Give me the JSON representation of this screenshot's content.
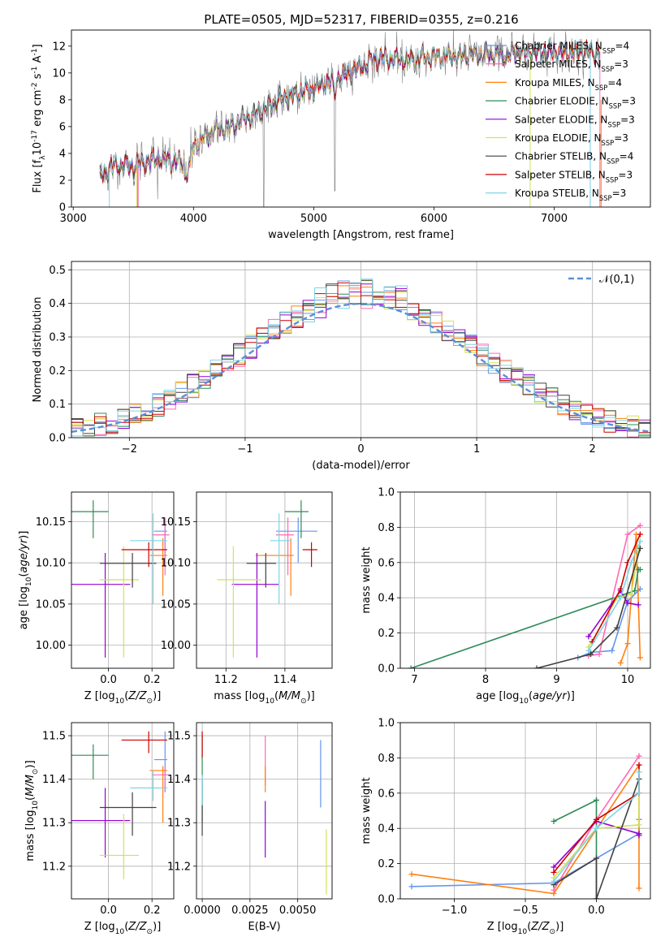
{
  "figure": {
    "title": "PLATE=0505, MJD=52317, FIBERID=0355, z=0.216"
  },
  "colors": {
    "Chabrier MILES": "#6495ed",
    "Salpeter MILES": "#ff69b4",
    "Kroupa MILES": "#ff7f0e",
    "Chabrier ELODIE": "#2e8b57",
    "Salpeter ELODIE": "#9400d3",
    "Kroupa ELODIE": "#d4e157",
    "Chabrier STELIB": "#404040",
    "Salpeter STELIB": "#cc0000",
    "Kroupa STELIB": "#7fd4e6",
    "data": "#808080",
    "normal": "#5b8fd6"
  },
  "chart_data": [
    {
      "id": "spectrum",
      "type": "line",
      "xlabel": "wavelength [Angstrom, rest frame]",
      "ylabel": "Flux [f$_\\lambda$10$^{-17}$ erg cm$^{-2}$ s$^{-1}$ A$^{-1}$]",
      "xlim": [
        2985,
        7800
      ],
      "ylim": [
        0,
        13.2
      ],
      "xticks": [
        3000,
        4000,
        5000,
        6000,
        7000
      ],
      "yticks": [
        0,
        2,
        4,
        6,
        8,
        10,
        12
      ],
      "legend_loc": "right",
      "grid": false,
      "continuum": [
        [
          3220,
          2.2
        ],
        [
          3300,
          2.9
        ],
        [
          3400,
          3.2
        ],
        [
          3500,
          3.0
        ],
        [
          3600,
          3.4
        ],
        [
          3700,
          3.6
        ],
        [
          3800,
          3.5
        ],
        [
          3900,
          3.2
        ],
        [
          4000,
          4.5
        ],
        [
          4100,
          5.3
        ],
        [
          4200,
          5.8
        ],
        [
          4300,
          5.9
        ],
        [
          4400,
          6.5
        ],
        [
          4500,
          6.9
        ],
        [
          4600,
          7.3
        ],
        [
          4700,
          8.0
        ],
        [
          4800,
          8.2
        ],
        [
          4900,
          8.6
        ],
        [
          5000,
          8.8
        ],
        [
          5100,
          9.3
        ],
        [
          5200,
          9.6
        ],
        [
          5300,
          10.0
        ],
        [
          5400,
          10.5
        ],
        [
          5500,
          11.0
        ],
        [
          5600,
          11.1
        ],
        [
          5700,
          11.0
        ],
        [
          5800,
          10.9
        ],
        [
          5900,
          11.1
        ],
        [
          6000,
          11.2
        ],
        [
          6100,
          11.3
        ],
        [
          6200,
          11.2
        ],
        [
          6300,
          11.4
        ],
        [
          6400,
          11.3
        ],
        [
          6500,
          11.4
        ],
        [
          6600,
          11.3
        ],
        [
          6700,
          11.5
        ],
        [
          6800,
          11.6
        ],
        [
          6900,
          11.5
        ],
        [
          7000,
          11.6
        ],
        [
          7100,
          11.5
        ],
        [
          7200,
          11.6
        ],
        [
          7300,
          11.5
        ],
        [
          7380,
          11.6
        ]
      ],
      "series": [
        {
          "name": "Chabrier MILES, N$_{SSP}$=4",
          "key": "Chabrier MILES"
        },
        {
          "name": "Salpeter MILES, N$_{SSP}$=3",
          "key": "Salpeter MILES"
        },
        {
          "name": "Kroupa MILES, N$_{SSP}$=4",
          "key": "Kroupa MILES"
        },
        {
          "name": "Chabrier ELODIE, N$_{SSP}$=3",
          "key": "Chabrier ELODIE"
        },
        {
          "name": "Salpeter ELODIE, N$_{SSP}$=3",
          "key": "Salpeter ELODIE"
        },
        {
          "name": "Kroupa ELODIE, N$_{SSP}$=3",
          "key": "Kroupa ELODIE"
        },
        {
          "name": "Chabrier STELIB, N$_{SSP}$=4",
          "key": "Chabrier STELIB"
        },
        {
          "name": "Salpeter STELIB, N$_{SSP}$=3",
          "key": "Salpeter STELIB"
        },
        {
          "name": "Kroupa STELIB, N$_{SSP}$=3",
          "key": "Kroupa STELIB"
        }
      ]
    },
    {
      "id": "residuals",
      "type": "line",
      "xlabel": "(data-model)/error",
      "ylabel": "Normed distribution",
      "xlim": [
        -2.5,
        2.5
      ],
      "ylim": [
        0,
        0.525
      ],
      "xticks": [
        -2,
        -1,
        0,
        1,
        2
      ],
      "yticks": [
        0.0,
        0.1,
        0.2,
        0.3,
        0.4,
        0.5
      ],
      "grid": true,
      "legend_loc": "top-right",
      "legend": "$\\mathcal{N}(0,1)$",
      "bins": {
        "start": -2.5,
        "width": 0.1,
        "count": 50
      },
      "normal": {
        "mean": 0,
        "sigma": 1
      }
    },
    {
      "id": "z-age",
      "type": "scatter",
      "xlabel": "Z [log$_{10}$($Z/Z_\\odot$)]",
      "ylabel": "age  [log$_{10}$($age/yr$)]",
      "xlim": [
        -0.17,
        0.3
      ],
      "ylim": [
        9.972,
        10.186
      ],
      "xticks": [
        0.0,
        0.2
      ],
      "yticks": [
        10.0,
        10.05,
        10.1,
        10.15
      ],
      "grid": true
    },
    {
      "id": "mass-age",
      "type": "scatter",
      "xlabel": "mass [log$_{10}$($M/M_\\odot$)]",
      "ylabel": "",
      "xlim": [
        11.1,
        11.56
      ],
      "ylim": [
        9.972,
        10.186
      ],
      "xticks": [
        11.2,
        11.4
      ],
      "yticks": [
        10.0,
        10.05,
        10.1,
        10.15
      ],
      "grid": true
    },
    {
      "id": "age-weight",
      "type": "line",
      "xlabel": "age  [log$_{10}$($age/yr$)]",
      "ylabel": "mass weight",
      "xlim": [
        6.8,
        10.32
      ],
      "ylim": [
        0,
        1.0
      ],
      "xticks": [
        7,
        8,
        9,
        10
      ],
      "yticks": [
        0.0,
        0.2,
        0.4,
        0.6,
        0.8,
        1.0
      ],
      "grid": true
    },
    {
      "id": "z-mass",
      "type": "scatter",
      "xlabel": "Z [log$_{10}$($Z/Z_\\odot$)]",
      "ylabel": "mass [log$_{10}$($M/M_\\odot$)]",
      "xlim": [
        -0.17,
        0.3
      ],
      "ylim": [
        11.125,
        11.53
      ],
      "xticks": [
        0.0,
        0.2
      ],
      "yticks": [
        11.2,
        11.3,
        11.4,
        11.5
      ],
      "grid": true
    },
    {
      "id": "ebv-mass",
      "type": "scatter",
      "xlabel": "E(B-V)",
      "ylabel": "",
      "xlim": [
        -0.0003,
        0.0068
      ],
      "ylim": [
        11.125,
        11.53
      ],
      "xticks": [
        0.0,
        0.0025,
        0.005
      ],
      "xticklabels": [
        "0.0000",
        "0.0025",
        "0.0050"
      ],
      "yticks": [
        11.2,
        11.3,
        11.4,
        11.5
      ],
      "grid": true
    },
    {
      "id": "z-weight",
      "type": "line",
      "xlabel": "Z [log$_{10}$($Z/Z_\\odot$)]",
      "ylabel": "mass weight",
      "xlim": [
        -1.38,
        0.38
      ],
      "ylim": [
        0,
        1.0
      ],
      "xticks": [
        -1.0,
        -0.5,
        0.0
      ],
      "xticklabels": [
        "−1.0",
        "−0.5",
        "0.0"
      ],
      "yticks": [
        0.0,
        0.2,
        0.4,
        0.6,
        0.8,
        1.0
      ],
      "grid": true
    }
  ],
  "models": [
    {
      "key": "Chabrier MILES",
      "age": [
        10.1,
        10.155
      ],
      "Z": [
        0.21,
        0.27
      ],
      "mass": [
        11.37,
        11.51
      ],
      "mass_y": 11.445,
      "ebv": 0.0062,
      "ebv_m": [
        11.335,
        11.49
      ],
      "ages": [
        9.3,
        9.48,
        9.78,
        10.0,
        10.176
      ],
      "aw": [
        0.06,
        0.09,
        0.1,
        0.38,
        0.45
      ],
      "zs": [
        -1.3,
        -0.3,
        0.3,
        0.3,
        0.3
      ],
      "zw": [
        0.07,
        0.09,
        0.37,
        0.45,
        0.45
      ]
    },
    {
      "key": "Salpeter MILES",
      "age": [
        10.085,
        10.155
      ],
      "Z": [
        0.2,
        0.28
      ],
      "mass": [
        11.37,
        11.43
      ],
      "mass_y": 11.41,
      "ebv": 0.0033,
      "ebv_m": [
        11.385,
        11.5
      ],
      "ages": [
        9.45,
        9.6,
        10.0,
        10.176
      ],
      "aw": [
        0.07,
        0.08,
        0.76,
        0.81
      ],
      "zs": [
        -0.3,
        0.0,
        0.3,
        0.3
      ],
      "zw": [
        0.05,
        0.45,
        0.81,
        0.81
      ]
    },
    {
      "key": "Kroupa MILES",
      "age": [
        10.06,
        10.13
      ],
      "Z": [
        0.19,
        0.27
      ],
      "mass": [
        11.3,
        11.43
      ],
      "mass_y": 11.42,
      "ebv": 0.0033,
      "ebv_m": [
        11.37,
        11.43
      ],
      "ages": [
        9.9,
        10.0,
        10.12,
        10.176
      ],
      "aw": [
        0.03,
        0.14,
        0.76,
        0.06
      ],
      "zs": [
        -1.3,
        -0.3,
        0.3,
        0.3
      ],
      "zw": [
        0.14,
        0.03,
        0.76,
        0.06
      ]
    },
    {
      "key": "Chabrier ELODIE",
      "age": [
        10.13,
        10.176
      ],
      "Z": [
        -0.18,
        0.0
      ],
      "mass": [
        11.4,
        11.48
      ],
      "mass_y": 11.455,
      "ebv": 0.0,
      "ebv_m": [
        11.3,
        11.5
      ],
      "ages": [
        6.95,
        10.1,
        10.15,
        10.176
      ],
      "aw": [
        0.0,
        0.44,
        0.56,
        0.56
      ],
      "zs": [
        -0.3,
        0.0,
        0.0,
        0.0
      ],
      "zw": [
        0.44,
        0.56,
        0.56,
        0.0
      ]
    },
    {
      "key": "Salpeter ELODIE",
      "age": [
        9.985,
        10.112
      ],
      "Z": [
        -0.17,
        0.1
      ],
      "mass": [
        11.22,
        11.38
      ],
      "mass_y": 11.305,
      "ebv": 0.0033,
      "ebv_m": [
        11.22,
        11.35
      ],
      "ages": [
        9.45,
        9.9,
        10.0,
        10.15
      ],
      "aw": [
        0.18,
        0.44,
        0.37,
        0.36
      ],
      "zs": [
        -0.3,
        0.0,
        0.3,
        0.3
      ],
      "zw": [
        0.18,
        0.44,
        0.37,
        0.36
      ]
    },
    {
      "key": "Kroupa ELODIE",
      "age": [
        9.985,
        10.12
      ],
      "Z": [
        -0.04,
        0.14
      ],
      "mass": [
        11.17,
        11.32
      ],
      "mass_y": 11.225,
      "ebv": 0.0065,
      "ebv_m": [
        11.135,
        11.285
      ],
      "ages": [
        9.45,
        9.85,
        10.05,
        10.176
      ],
      "aw": [
        0.12,
        0.4,
        0.42,
        0.72
      ],
      "zs": [
        -0.3,
        0.0,
        0.3,
        0.3
      ],
      "zw": [
        0.12,
        0.4,
        0.42,
        0.72
      ]
    },
    {
      "key": "Chabrier STELIB",
      "age": [
        10.07,
        10.112
      ],
      "Z": [
        -0.04,
        0.22
      ],
      "mass": [
        11.27,
        11.37
      ],
      "mass_y": 11.335,
      "ebv": 0.0,
      "ebv_m": [
        11.27,
        11.4
      ],
      "ages": [
        8.72,
        9.48,
        9.85,
        10.176
      ],
      "aw": [
        0.0,
        0.08,
        0.23,
        0.68
      ],
      "zs": [
        -0.3,
        0.0,
        0.0,
        0.3
      ],
      "zw": [
        0.08,
        0.23,
        0.0,
        0.68
      ]
    },
    {
      "key": "Salpeter STELIB",
      "age": [
        10.095,
        10.125
      ],
      "Z": [
        0.06,
        0.27
      ],
      "mass": [
        11.46,
        11.51
      ],
      "mass_y": 11.49,
      "ebv": 0.0,
      "ebv_m": [
        11.45,
        11.51
      ],
      "ages": [
        9.5,
        9.9,
        10.0,
        10.176
      ],
      "aw": [
        0.15,
        0.45,
        0.6,
        0.76
      ],
      "zs": [
        -0.3,
        0.0,
        0.3,
        0.3
      ],
      "zw": [
        0.15,
        0.45,
        0.6,
        0.76
      ]
    },
    {
      "key": "Kroupa STELIB",
      "age": [
        10.05,
        10.16
      ],
      "Z": [
        0.1,
        0.27
      ],
      "mass": [
        11.35,
        11.42
      ],
      "mass_y": 11.38,
      "ebv": 0.0,
      "ebv_m": [
        11.34,
        11.41
      ],
      "ages": [
        9.45,
        9.9,
        10.05,
        10.176
      ],
      "aw": [
        0.1,
        0.4,
        0.6,
        0.72
      ],
      "zs": [
        -0.3,
        0.0,
        0.3,
        0.3
      ],
      "zw": [
        0.1,
        0.4,
        0.6,
        0.72
      ]
    }
  ]
}
